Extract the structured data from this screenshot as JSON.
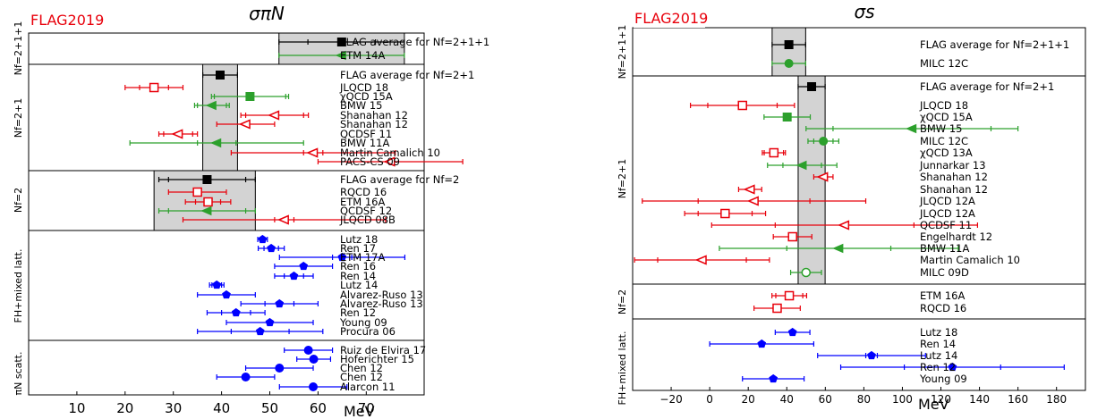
{
  "header": {
    "flag_label_left": "FLAG2019",
    "flag_label_right": "FLAG2019"
  },
  "chart_data": [
    {
      "type": "scatter",
      "title": "σπN",
      "unit_label": "MeV",
      "xlim": [
        0,
        82
      ],
      "ticks": [
        10,
        20,
        30,
        40,
        50,
        60,
        70
      ],
      "bands": [
        {
          "group": "2+1+1",
          "center": 64.9,
          "low": 51.9,
          "high": 77.9
        },
        {
          "group": "2+1",
          "center": 39.7,
          "low": 36.1,
          "high": 43.3
        },
        {
          "group": "2",
          "center": 37,
          "low": 26,
          "high": 47
        }
      ],
      "groups": [
        {
          "label": "Nf=2+1+1",
          "entries": [
            {
              "label": "FLAG average for Nf=2+1+1",
              "value": 64.9,
              "stat": 7,
              "tot": 13,
              "color": "#000000",
              "marker": "square",
              "filled": true
            },
            {
              "label": "ETM 14A",
              "value": 64.9,
              "stat": 13,
              "tot": 13,
              "color": "#2ca02c",
              "marker": "tri-left",
              "filled": true,
              "label_cap": true
            }
          ]
        },
        {
          "label": "Nf=2+1",
          "entries": [
            {
              "label": "FLAG average for Nf=2+1",
              "value": 39.7,
              "stat": 3.6,
              "tot": 3.6,
              "color": "#000000",
              "marker": "square",
              "filled": true
            },
            {
              "label": "JLQCD 18",
              "value": 26,
              "stat": 3,
              "tot": 6,
              "color": "#e8000b",
              "marker": "square",
              "filled": false
            },
            {
              "label": "χQCD 15A",
              "value": 45.9,
              "stat": 7.4,
              "tot": 8,
              "color": "#2ca02c",
              "marker": "square",
              "filled": true
            },
            {
              "label": "BMW 15",
              "value": 38,
              "stat": 3,
              "tot": 3.6,
              "color": "#2ca02c",
              "marker": "tri-left",
              "filled": true
            },
            {
              "label": "Shanahan 12",
              "value": 51,
              "stat": 6,
              "tot": 7,
              "color": "#e8000b",
              "marker": "tri-left",
              "filled": false
            },
            {
              "label": "Shanahan 12",
              "value": 45,
              "stat": 6,
              "tot": 6,
              "color": "#e8000b",
              "marker": "tri-left",
              "filled": false
            },
            {
              "label": "QCDSF 11",
              "value": 31,
              "stat": 3,
              "tot": 4,
              "color": "#e8000b",
              "marker": "tri-left",
              "filled": false
            },
            {
              "label": "BMW 11A",
              "value": 39,
              "stat": 4,
              "tot": 18,
              "color": "#2ca02c",
              "marker": "tri-left",
              "filled": true
            },
            {
              "label": "Martin Camalich 10",
              "value": 59,
              "stat": 2,
              "tot": 17,
              "color": "#e8000b",
              "marker": "tri-left",
              "filled": false
            },
            {
              "label": "PACS-CS 09",
              "value": 75,
              "stat": 15,
              "tot": 15,
              "color": "#e8000b",
              "marker": "tri-left",
              "filled": false
            }
          ]
        },
        {
          "label": "Nf=2",
          "entries": [
            {
              "label": "FLAG average for Nf=2",
              "value": 37,
              "stat": 8,
              "tot": 10,
              "color": "#000000",
              "marker": "square",
              "filled": true
            },
            {
              "label": "RQCD 16",
              "value": 35,
              "stat": 6,
              "tot": 6,
              "color": "#e8000b",
              "marker": "square",
              "filled": false
            },
            {
              "label": "ETM 16A",
              "value": 37.2,
              "stat": 2.6,
              "tot": 4.7,
              "color": "#e8000b",
              "marker": "square",
              "filled": false
            },
            {
              "label": "QCDSF 12",
              "value": 37,
              "stat": 8,
              "tot": 10,
              "color": "#2ca02c",
              "marker": "tri-left",
              "filled": true
            },
            {
              "label": "JLQCD 08B",
              "value": 53,
              "stat": 2,
              "tot": 21,
              "color": "#e8000b",
              "marker": "tri-left",
              "filled": false
            }
          ]
        },
        {
          "label": "FH+mixed latt.",
          "entries": [
            {
              "label": "Lutz 18",
              "value": 48.5,
              "stat": 1,
              "tot": 1,
              "color": "#0000ff",
              "marker": "pentagon",
              "filled": true
            },
            {
              "label": "Ren 17",
              "value": 50.3,
              "stat": 1.5,
              "tot": 2.7,
              "color": "#0000ff",
              "marker": "pentagon",
              "filled": true
            },
            {
              "label": "ETM 17A",
              "value": 65,
              "stat": 2,
              "tot": 13,
              "color": "#0000ff",
              "marker": "pentagon",
              "filled": true
            },
            {
              "label": "Ren 16",
              "value": 57,
              "stat": 6,
              "tot": 6,
              "color": "#0000ff",
              "marker": "pentagon",
              "filled": true
            },
            {
              "label": "Ren 14",
              "value": 55,
              "stat": 2,
              "tot": 4,
              "color": "#0000ff",
              "marker": "pentagon",
              "filled": true
            },
            {
              "label": "Lutz 14",
              "value": 39,
              "stat": 1,
              "tot": 1.5,
              "color": "#0000ff",
              "marker": "pentagon",
              "filled": true
            },
            {
              "label": "Alvarez-Ruso 13",
              "value": 41,
              "stat": 6,
              "tot": 6,
              "color": "#0000ff",
              "marker": "pentagon",
              "filled": true
            },
            {
              "label": "Alvarez-Ruso 13",
              "value": 52,
              "stat": 3,
              "tot": 8,
              "color": "#0000ff",
              "marker": "pentagon",
              "filled": true
            },
            {
              "label": "Ren 12",
              "value": 43,
              "stat": 3,
              "tot": 6,
              "color": "#0000ff",
              "marker": "pentagon",
              "filled": true
            },
            {
              "label": "Young 09",
              "value": 50,
              "stat": 9,
              "tot": 9,
              "color": "#0000ff",
              "marker": "pentagon",
              "filled": true
            },
            {
              "label": "Procura 06",
              "value": 48,
              "stat": 6,
              "tot": 13,
              "color": "#0000ff",
              "marker": "pentagon",
              "filled": true
            }
          ]
        },
        {
          "label": "πN scatt.",
          "entries": [
            {
              "label": "Ruiz de Elvira 17",
              "value": 58,
              "stat": 5,
              "tot": 5,
              "color": "#0000ff",
              "marker": "circle",
              "filled": true
            },
            {
              "label": "Hoferichter 15",
              "value": 59.1,
              "stat": 3.5,
              "tot": 3.5,
              "color": "#0000ff",
              "marker": "circle",
              "filled": true
            },
            {
              "label": "Chen 12",
              "value": 52,
              "stat": 7,
              "tot": 7,
              "color": "#0000ff",
              "marker": "circle",
              "filled": true
            },
            {
              "label": "Chen 12",
              "value": 45,
              "stat": 6,
              "tot": 6,
              "color": "#0000ff",
              "marker": "circle",
              "filled": true
            },
            {
              "label": "Alarcon 11",
              "value": 59,
              "stat": 7,
              "tot": 7,
              "color": "#0000ff",
              "marker": "circle",
              "filled": true
            }
          ]
        }
      ]
    },
    {
      "type": "scatter",
      "title": "σs",
      "unit_label": "MeV",
      "xlim": [
        -40,
        195
      ],
      "ticks": [
        -20,
        0,
        20,
        40,
        60,
        80,
        100,
        120,
        140,
        160,
        180
      ],
      "bands": [
        {
          "group": "2+1+1",
          "center": 41.1,
          "low": 32.4,
          "high": 49.8
        },
        {
          "group": "2+1",
          "center": 52.9,
          "low": 45.9,
          "high": 59.9
        }
      ],
      "groups": [
        {
          "label": "Nf=2+1+1",
          "entries": [
            {
              "label": "FLAG average for Nf=2+1+1",
              "value": 41.1,
              "stat": 8.7,
              "tot": 8.7,
              "color": "#000000",
              "marker": "square",
              "filled": true
            },
            {
              "label": "MILC 12C",
              "value": 41.1,
              "stat": 8.7,
              "tot": 8.7,
              "color": "#2ca02c",
              "marker": "circle",
              "filled": true,
              "label_cap": true
            }
          ]
        },
        {
          "label": "Nf=2+1",
          "entries": [
            {
              "label": "FLAG average for Nf=2+1",
              "value": 52.9,
              "stat": 7,
              "tot": 7,
              "color": "#000000",
              "marker": "square",
              "filled": true
            },
            {
              "label": "JLQCD 18",
              "value": 17,
              "stat": 18,
              "tot": 27,
              "color": "#e8000b",
              "marker": "square",
              "filled": false
            },
            {
              "label": "χQCD 15A",
              "value": 40.2,
              "stat": 12,
              "tot": 12,
              "color": "#2ca02c",
              "marker": "square",
              "filled": true
            },
            {
              "label": "BMW 15",
              "value": 105,
              "stat": 41,
              "tot": 55,
              "color": "#2ca02c",
              "marker": "tri-left",
              "filled": true
            },
            {
              "label": "MILC 12C",
              "value": 59,
              "stat": 5,
              "tot": 8,
              "color": "#2ca02c",
              "marker": "circle",
              "filled": true
            },
            {
              "label": "χQCD 13A",
              "value": 33.3,
              "stat": 5,
              "tot": 6,
              "color": "#e8000b",
              "marker": "square",
              "filled": false
            },
            {
              "label": "Junnarkar 13",
              "value": 48,
              "stat": 10,
              "tot": 18,
              "color": "#2ca02c",
              "marker": "tri-left",
              "filled": true
            },
            {
              "label": "Shanahan 12",
              "value": 59,
              "stat": 5,
              "tot": 5,
              "color": "#e8000b",
              "marker": "tri-left",
              "filled": false
            },
            {
              "label": "Shanahan 12",
              "value": 21,
              "stat": 6,
              "tot": 6,
              "color": "#e8000b",
              "marker": "tri-left",
              "filled": false
            },
            {
              "label": "JLQCD 12A",
              "value": 23,
              "stat": 29,
              "tot": 58,
              "color": "#e8000b",
              "marker": "tri-left",
              "filled": false
            },
            {
              "label": "JLQCD 12A",
              "value": 8,
              "stat": 14,
              "tot": 21,
              "color": "#e8000b",
              "marker": "square",
              "filled": false
            },
            {
              "label": "QCDSF 11",
              "value": 70,
              "stat": 36,
              "tot": 69,
              "color": "#e8000b",
              "marker": "tri-left",
              "filled": false
            },
            {
              "label": "Engelhardt 12",
              "value": 43,
              "stat": 10,
              "tot": 10,
              "color": "#e8000b",
              "marker": "square",
              "filled": false
            },
            {
              "label": "BMW 11A",
              "value": 67,
              "stat": 27,
              "tot": 62,
              "color": "#2ca02c",
              "marker": "tri-left",
              "filled": true
            },
            {
              "label": "Martin Camalich 10",
              "value": -4,
              "stat": 23,
              "tot": 35,
              "color": "#e8000b",
              "marker": "tri-left",
              "filled": false
            },
            {
              "label": "MILC 09D",
              "value": 50,
              "stat": 8,
              "tot": 8,
              "color": "#2ca02c",
              "marker": "circle",
              "filled": false
            }
          ]
        },
        {
          "label": "Nf=2",
          "entries": [
            {
              "label": "ETM 16A",
              "value": 41.3,
              "stat": 7,
              "tot": 9,
              "color": "#e8000b",
              "marker": "square",
              "filled": false
            },
            {
              "label": "RQCD 16",
              "value": 35,
              "stat": 12,
              "tot": 12,
              "color": "#e8000b",
              "marker": "square",
              "filled": false
            }
          ]
        },
        {
          "label": "FH+mixed latt.",
          "entries": [
            {
              "label": "Lutz 18",
              "value": 43,
              "stat": 9,
              "tot": 9,
              "color": "#0000ff",
              "marker": "pentagon",
              "filled": true
            },
            {
              "label": "Ren 14",
              "value": 27,
              "stat": 27,
              "tot": 27,
              "color": "#0000ff",
              "marker": "pentagon",
              "filled": true
            },
            {
              "label": "Lutz 14",
              "value": 84,
              "stat": 3,
              "tot": 28,
              "color": "#0000ff",
              "marker": "pentagon",
              "filled": true
            },
            {
              "label": "Ren 12",
              "value": 126,
              "stat": 25,
              "tot": 58,
              "color": "#0000ff",
              "marker": "pentagon",
              "filled": true
            },
            {
              "label": "Young 09",
              "value": 33,
              "stat": 16,
              "tot": 16,
              "color": "#0000ff",
              "marker": "pentagon",
              "filled": true
            }
          ]
        }
      ]
    }
  ]
}
